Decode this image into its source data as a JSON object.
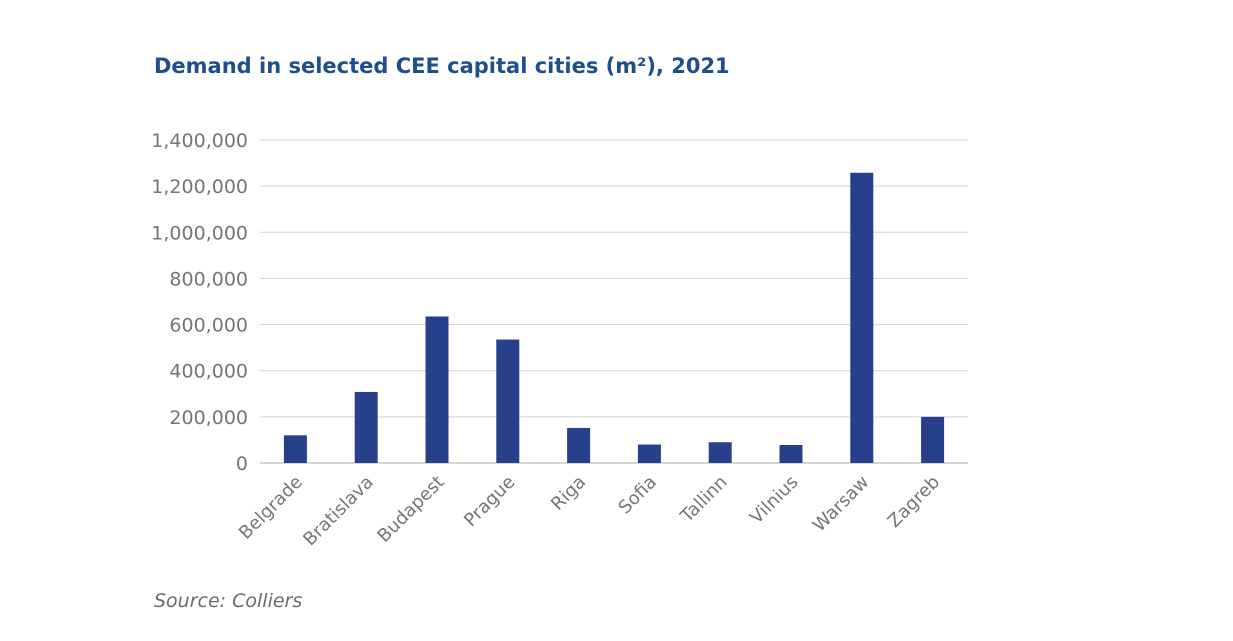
{
  "chart_data": {
    "type": "bar",
    "title": "Demand in selected CEE capital cities (m²), 2021",
    "xlabel": "",
    "ylabel": "",
    "categories": [
      "Belgrade",
      "Bratislava",
      "Budapest",
      "Prague",
      "Riga",
      "Sofia",
      "Tallinn",
      "Vilnius",
      "Warsaw",
      "Zagreb"
    ],
    "values": [
      120000,
      308000,
      635000,
      535000,
      152000,
      80000,
      90000,
      78000,
      1258000,
      200000
    ],
    "ylim": [
      0,
      1400000
    ],
    "yticks": [
      0,
      200000,
      400000,
      600000,
      800000,
      1000000,
      1200000,
      1400000
    ],
    "ytick_labels": [
      "0",
      "200,000",
      "400,000",
      "600,000",
      "800,000",
      "1,000,000",
      "1,200,000",
      "1,400,000"
    ],
    "grid": true,
    "legend": "none",
    "bar_color": "#27408b",
    "source": "Source: Colliers"
  }
}
